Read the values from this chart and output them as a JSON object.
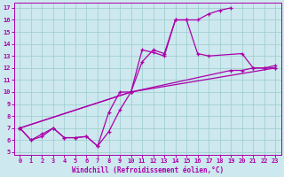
{
  "xlabel": "Windchill (Refroidissement éolien,°C)",
  "bg_color": "#cde8ee",
  "line_color": "#aa00aa",
  "grid_color": "#99cccc",
  "line1": [
    [
      0,
      7.0
    ],
    [
      1,
      6.0
    ],
    [
      2,
      6.3
    ],
    [
      3,
      7.0
    ],
    [
      4,
      6.2
    ],
    [
      5,
      6.2
    ],
    [
      6,
      6.3
    ],
    [
      7,
      5.5
    ],
    [
      8,
      6.7
    ],
    [
      9,
      8.5
    ],
    [
      10,
      10.0
    ],
    [
      11,
      13.5
    ],
    [
      12,
      13.3
    ],
    [
      13,
      13.0
    ],
    [
      14,
      16.0
    ],
    [
      15,
      16.0
    ],
    [
      16,
      16.0
    ],
    [
      17,
      16.5
    ],
    [
      18,
      16.8
    ],
    [
      19,
      17.0
    ]
  ],
  "line2": [
    [
      0,
      7.0
    ],
    [
      1,
      6.0
    ],
    [
      2,
      6.5
    ],
    [
      3,
      7.0
    ],
    [
      4,
      6.2
    ],
    [
      5,
      6.2
    ],
    [
      6,
      6.3
    ],
    [
      7,
      5.5
    ],
    [
      8,
      8.3
    ],
    [
      9,
      10.0
    ],
    [
      10,
      10.0
    ],
    [
      11,
      12.5
    ],
    [
      12,
      13.5
    ],
    [
      13,
      13.2
    ],
    [
      14,
      16.0
    ],
    [
      15,
      16.0
    ],
    [
      16,
      13.2
    ],
    [
      17,
      13.0
    ],
    [
      20,
      13.2
    ],
    [
      21,
      12.0
    ],
    [
      22,
      12.0
    ],
    [
      23,
      12.0
    ]
  ],
  "line3": [
    [
      0,
      7.0
    ],
    [
      10,
      10.0
    ],
    [
      19,
      11.8
    ],
    [
      20,
      11.8
    ],
    [
      21,
      12.0
    ],
    [
      22,
      12.0
    ],
    [
      23,
      12.2
    ]
  ],
  "line4": [
    [
      0,
      7.0
    ],
    [
      10,
      10.0
    ],
    [
      23,
      12.0
    ]
  ],
  "xmin": 0,
  "xmax": 23,
  "ymin": 5,
  "ymax": 17,
  "xticks": [
    0,
    1,
    2,
    3,
    4,
    5,
    6,
    7,
    8,
    9,
    10,
    11,
    12,
    13,
    14,
    15,
    16,
    17,
    18,
    19,
    20,
    21,
    22,
    23
  ],
  "yticks": [
    5,
    6,
    7,
    8,
    9,
    10,
    11,
    12,
    13,
    14,
    15,
    16,
    17
  ]
}
